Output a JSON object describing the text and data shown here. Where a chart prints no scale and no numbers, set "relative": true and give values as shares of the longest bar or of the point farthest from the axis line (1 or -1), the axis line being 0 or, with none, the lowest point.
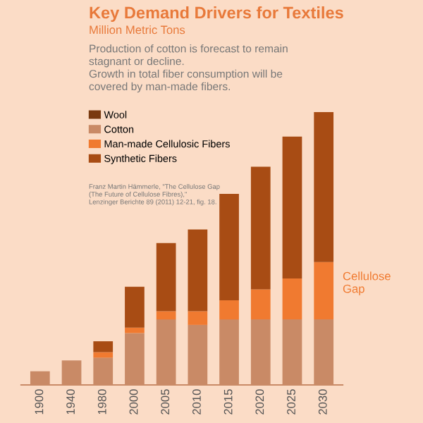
{
  "chart_data": {
    "type": "bar",
    "stacked": true,
    "relative": true,
    "title": "Key Demand Drivers for Textiles",
    "subtitle": "Million Metric Tons",
    "categories": [
      "1900",
      "1940",
      "1980",
      "2000",
      "2005",
      "2010",
      "2015",
      "2020",
      "2025",
      "2030"
    ],
    "series": [
      {
        "name": "Wool",
        "color": "#7a3a10",
        "values": [
          null,
          null,
          null,
          null,
          null,
          null,
          null,
          null,
          null,
          null
        ]
      },
      {
        "name": "Cotton",
        "color": "#c98a66",
        "values": [
          0.05,
          0.09,
          0.1,
          0.19,
          0.24,
          0.22,
          0.24,
          0.24,
          0.24,
          0.24
        ]
      },
      {
        "name": "Man-made Cellulosic Fibers",
        "color": "#f07a30",
        "values": [
          0,
          0,
          0.02,
          0.02,
          0.03,
          0.05,
          0.07,
          0.11,
          0.15,
          0.21
        ]
      },
      {
        "name": "Synthetic Fibers",
        "color": "#a84c14",
        "values": [
          0,
          0,
          0.04,
          0.15,
          0.25,
          0.3,
          0.39,
          0.45,
          0.52,
          0.55
        ]
      }
    ],
    "annotations": [
      "Production of cotton is forecast to remain stagnant or decline.\nGrowth in total fiber consumption will be covered by man-made fibers.",
      "Franz Martin Hämmerle, \"The Cellulose Gap\n(The Future of Cellulose Fibres),\"\nLenzinger Berichte 89 (2011) 12-21, fig. 18.",
      "Cellulose\nGap"
    ],
    "legend": "top left",
    "grid": false
  }
}
